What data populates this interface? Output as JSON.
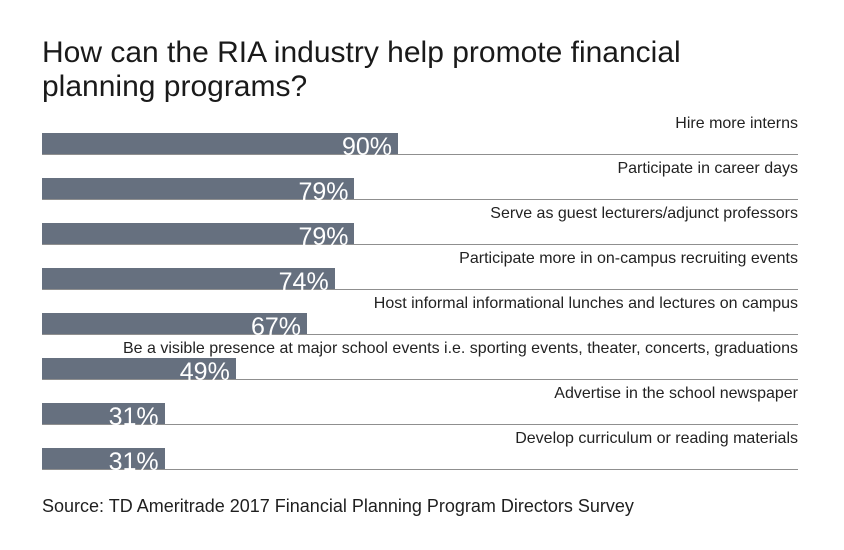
{
  "chart_data": {
    "type": "bar",
    "title": "How can the RIA industry help promote financial planning programs?",
    "categories": [
      "Hire more interns",
      "Participate in career days",
      "Serve as guest lecturers/adjunct professors",
      "Participate more in on-campus recruiting events",
      "Host informal informational lunches and lectures on campus",
      "Be a visible presence at major school events i.e. sporting events, theater, concerts, graduations",
      "Advertise in the school newspaper",
      "Develop curriculum or reading materials"
    ],
    "values": [
      90,
      79,
      79,
      74,
      67,
      49,
      31,
      31
    ],
    "value_labels": [
      "90%",
      "79%",
      "79%",
      "74%",
      "67%",
      "49%",
      "31%",
      "31%"
    ],
    "xlim": [
      0,
      100
    ],
    "grid": false,
    "legend": "none",
    "orientation": "horizontal",
    "colors": {
      "bar": "#66707f",
      "value_text": "#ffffff",
      "divider": "#8f8f8f"
    }
  },
  "source": "Source: TD Ameritrade 2017 Financial Planning Program Directors Survey"
}
